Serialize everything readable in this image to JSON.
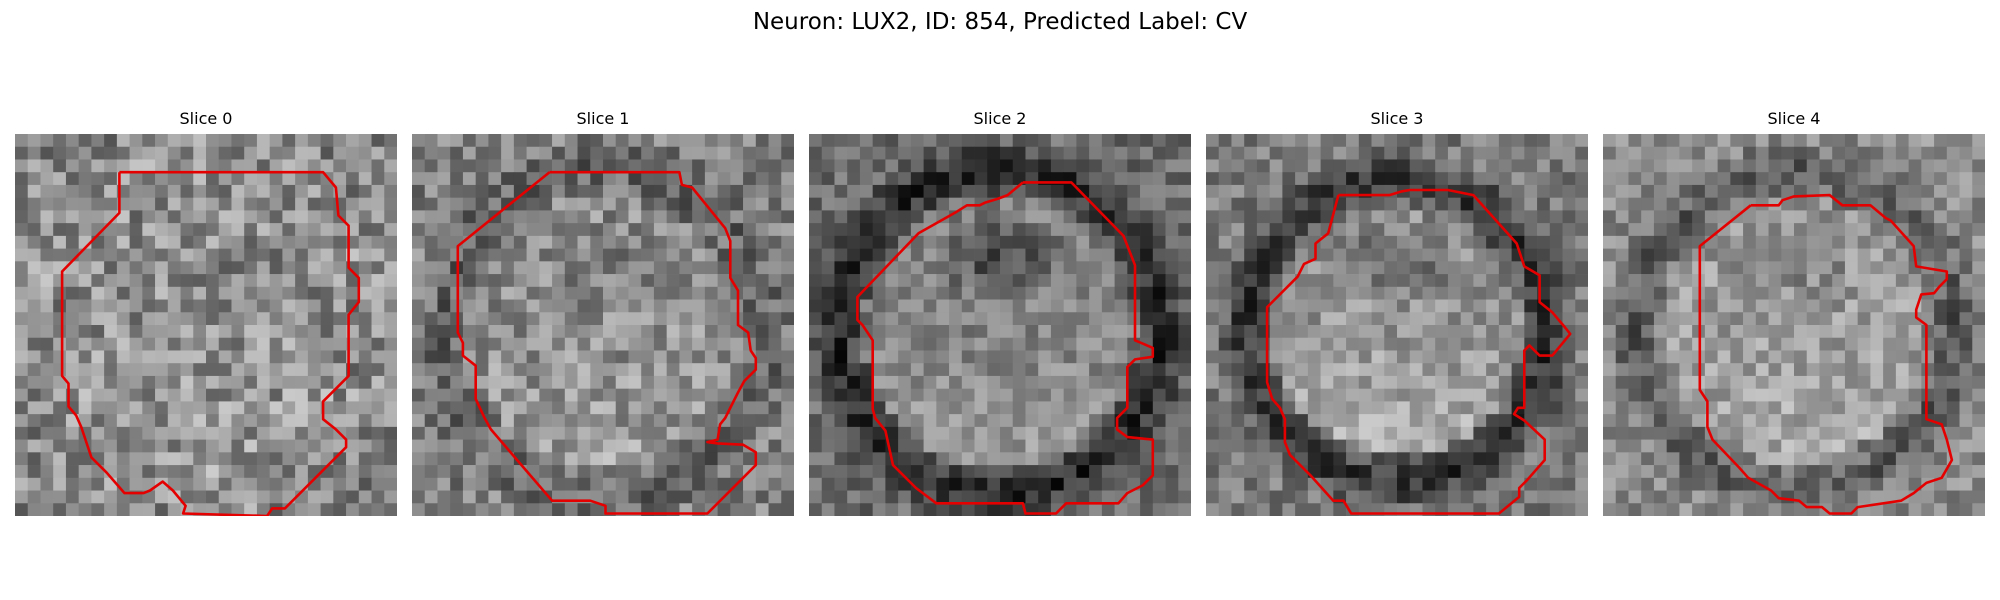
{
  "figure": {
    "title": "Neuron: LUX2, ID: 854, Predicted Label: CV",
    "contour_color": "#e50000",
    "colormap": "grayscale"
  },
  "panels": [
    {
      "title": "Slice 0"
    },
    {
      "title": "Slice 1"
    },
    {
      "title": "Slice 2"
    },
    {
      "title": "Slice 3"
    },
    {
      "title": "Slice 4"
    }
  ]
}
